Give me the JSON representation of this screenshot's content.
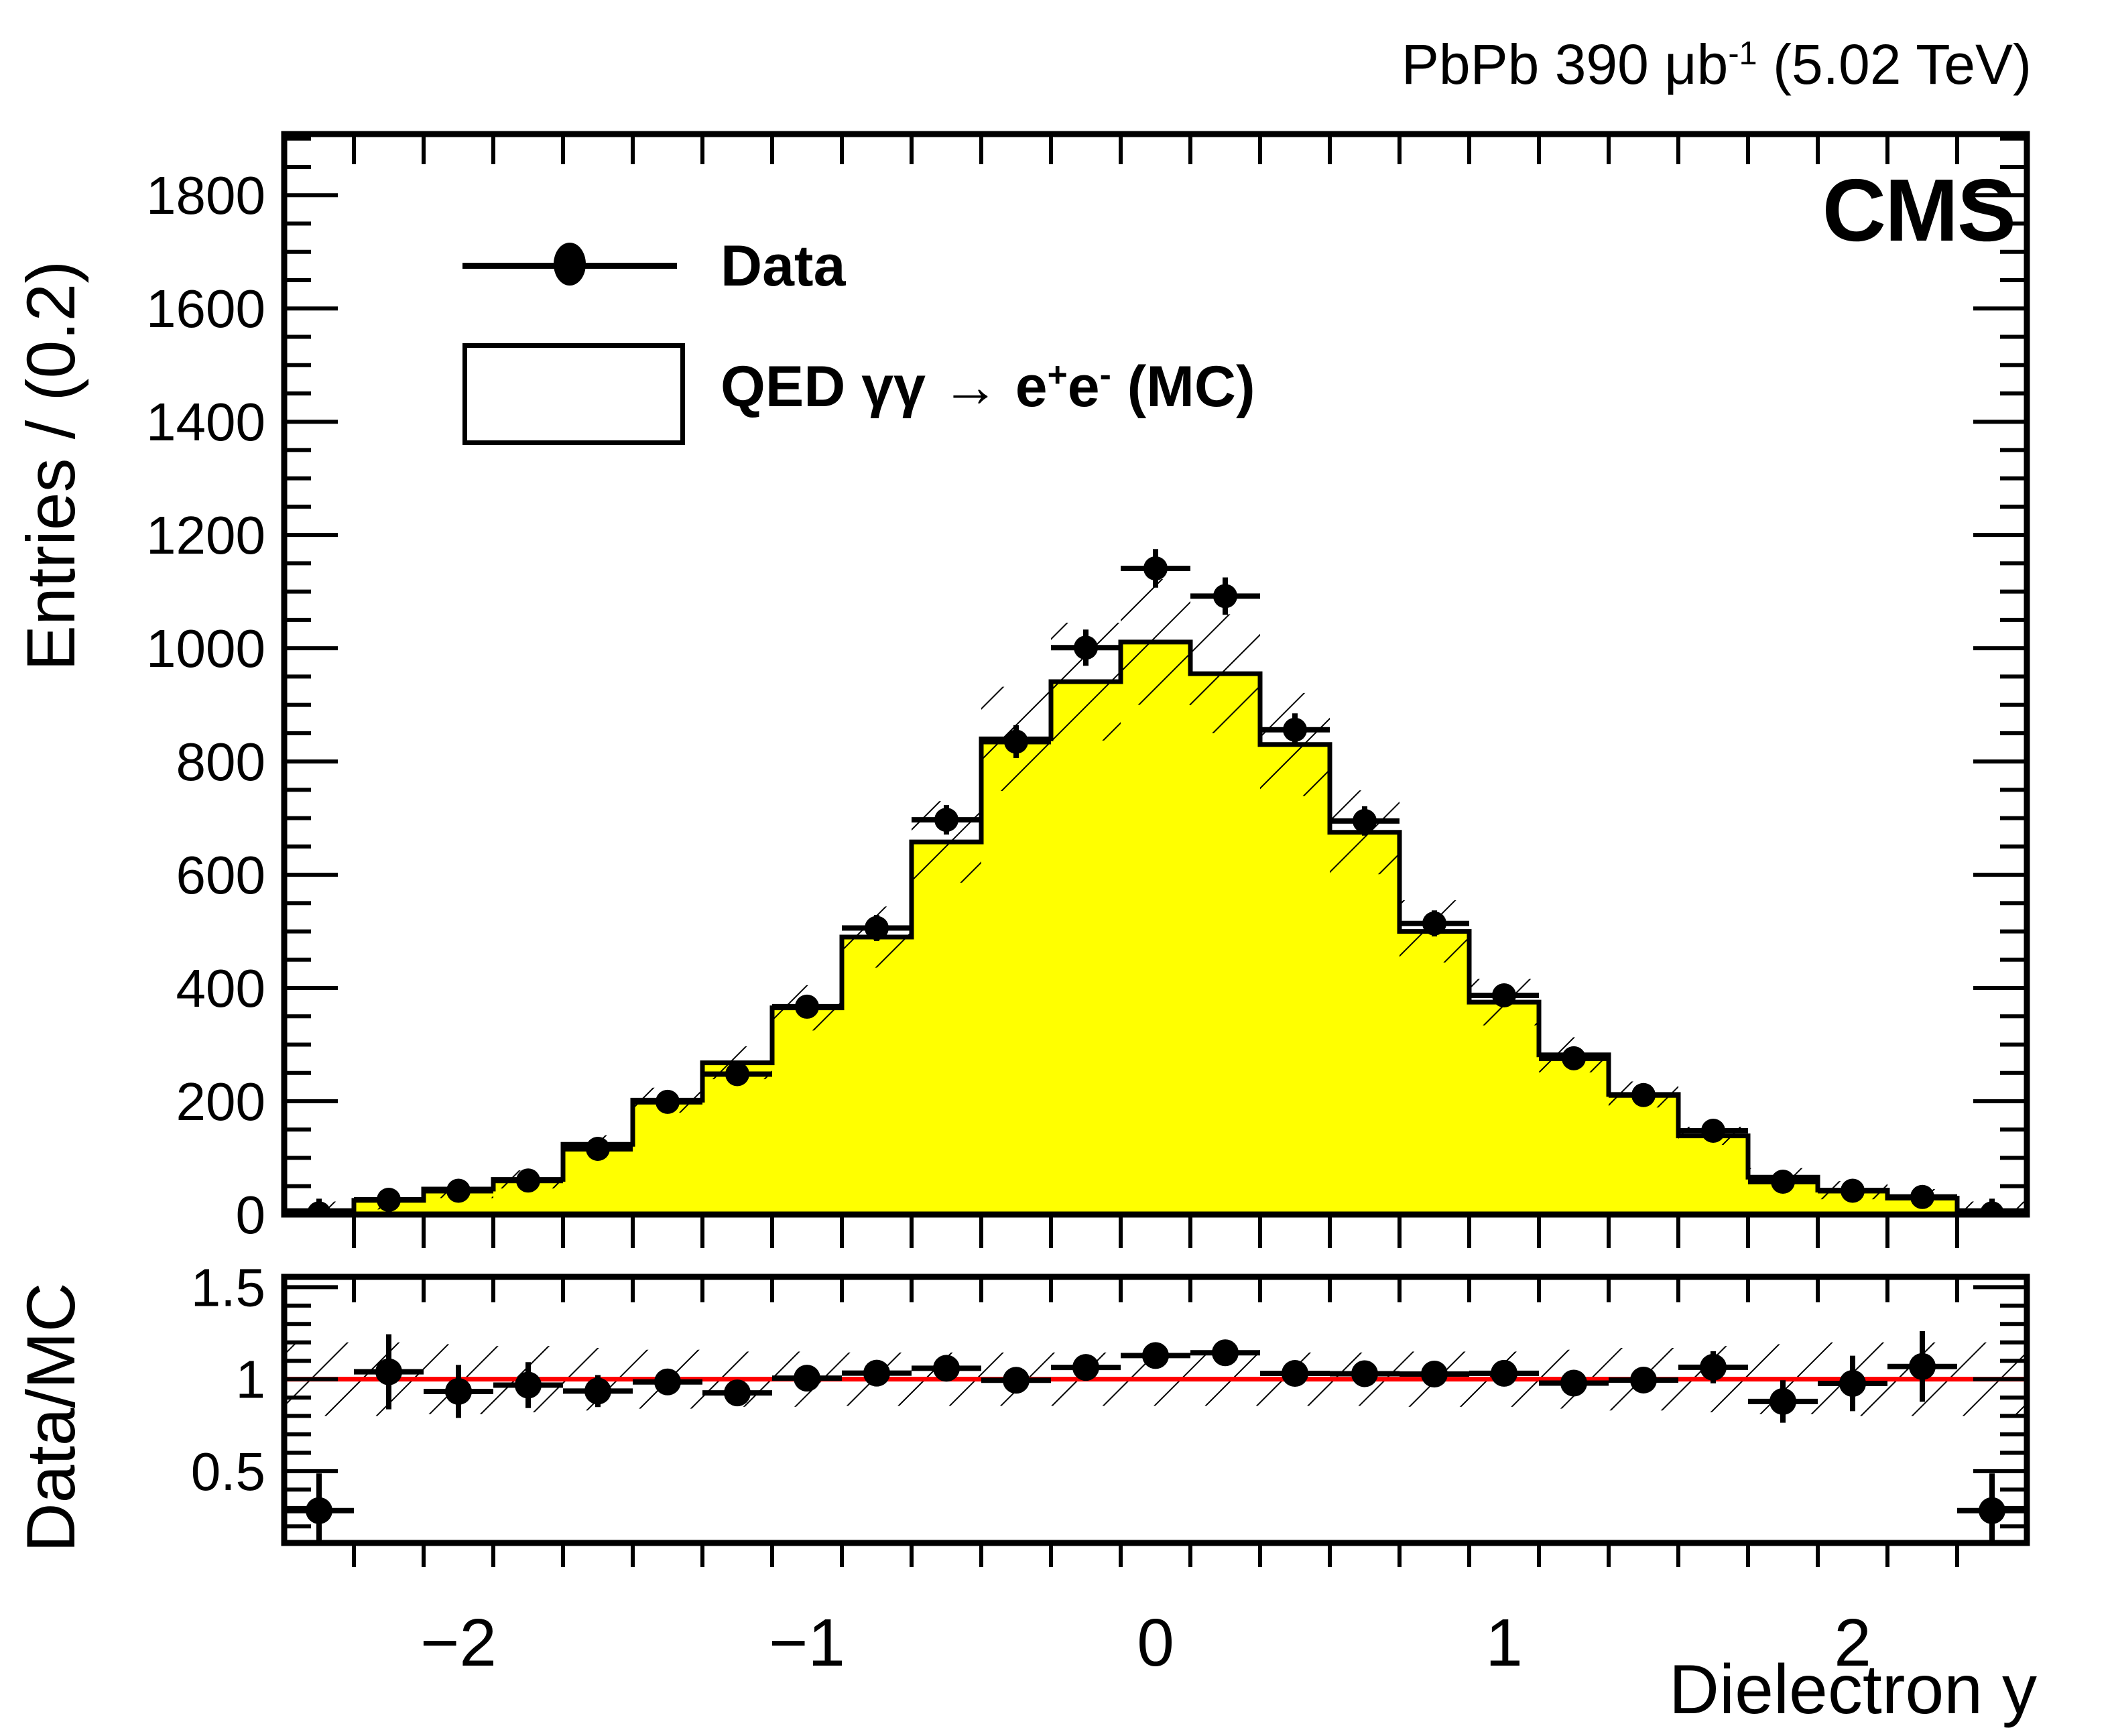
{
  "header": {
    "lumi_prefix": "PbPb 390 ",
    "lumi_unit": "μb",
    "lumi_sup": "-1",
    "lumi_suffix": " (5.02 TeV)",
    "cms": "CMS"
  },
  "legend": {
    "data_label": "Data",
    "mc_label_parts": {
      "qed": "QED ",
      "gammas": "γγ",
      "arrow": " → ",
      "e1": "e",
      "sup_plus": "+",
      "e2": "e",
      "sup_minus": "-",
      "suffix": " (MC)"
    }
  },
  "chart_data": {
    "type": "bar",
    "subtype": "histogram-with-ratio-panel",
    "title": "PbPb 390 μb⁻¹ (5.02 TeV)",
    "xlabel": "Dielectron y",
    "ylabel_main": "Entries / (0.2)",
    "ylabel_ratio": "Data/MC",
    "legend_entries": [
      "Data",
      "QED γγ → e+e- (MC)"
    ],
    "legend_position": "top-left",
    "grid": false,
    "bin_width": 0.2,
    "xlim": [
      -2.5,
      2.5
    ],
    "ylim_main": [
      0,
      1908
    ],
    "ylim_ratio": [
      0.11,
      1.556
    ],
    "categories": [
      -2.4,
      -2.2,
      -2.0,
      -1.8,
      -1.6,
      -1.4,
      -1.2,
      -1.0,
      -0.8,
      -0.6,
      -0.4,
      -0.2,
      0.0,
      0.2,
      0.4,
      0.6,
      0.8,
      1.0,
      1.2,
      1.4,
      1.6,
      1.8,
      2.0,
      2.2,
      2.4
    ],
    "series": [
      {
        "name": "Data",
        "style": "points",
        "values": [
          2,
          26,
          42,
          60,
          116,
          199,
          248,
          367,
          506,
          697,
          835,
          1001,
          1141,
          1092,
          856,
          695,
          514,
          387,
          276,
          211,
          148,
          58,
          42,
          31,
          2
        ],
        "errors": [
          26,
          8,
          7,
          8,
          11,
          14,
          16,
          19,
          23,
          26,
          29,
          32,
          34,
          33,
          29,
          26,
          23,
          20,
          17,
          15,
          12,
          8,
          7,
          6,
          26
        ]
      },
      {
        "name": "QED gamma-gamma to e+e- (MC)",
        "style": "filled-histogram",
        "values": [
          7,
          25,
          45,
          62,
          124,
          202,
          268,
          365,
          490,
          658,
          840,
          941,
          1011,
          955,
          830,
          675,
          500,
          375,
          282,
          212,
          139,
          66,
          43,
          29,
          7
        ],
        "band_halfwidths": [
          16,
          16,
          16,
          16,
          16,
          22,
          29,
          40,
          54,
          72,
          92,
          104,
          111,
          105,
          91,
          74,
          55,
          41,
          31,
          23,
          16,
          16,
          16,
          16,
          16
        ]
      }
    ],
    "ratio": {
      "reference": 1.0,
      "band_halfwidths": [
        0.2,
        0.2,
        0.19,
        0.18,
        0.17,
        0.16,
        0.15,
        0.15,
        0.145,
        0.145,
        0.145,
        0.145,
        0.145,
        0.145,
        0.145,
        0.145,
        0.15,
        0.15,
        0.16,
        0.17,
        0.18,
        0.19,
        0.2,
        0.2,
        0.2
      ]
    },
    "axis_ticks": {
      "y_main_tick_values": [
        0,
        200,
        400,
        600,
        800,
        1000,
        1200,
        1400,
        1600,
        1800
      ],
      "y_main_tick_labels": [
        "0",
        "200",
        "400",
        "600",
        "800",
        "1000",
        "1200",
        "1400",
        "1600",
        "1800"
      ],
      "y_main_minor_step": 50,
      "x_tick_values": [
        -2,
        -1,
        0,
        1,
        2
      ],
      "x_tick_labels": [
        "−2",
        "−1",
        "0",
        "1",
        "2"
      ],
      "x_minor_step": 0.2,
      "ratio_tick_values": [
        0.5,
        1.0,
        1.5
      ],
      "ratio_tick_labels": [
        "0.5",
        "1",
        "1.5"
      ],
      "ratio_minor_step": 0.1
    },
    "colors": {
      "mc_fill": "#ffff00",
      "line": "#000000",
      "ratio_reference_line": "#ff0000",
      "background": "#ffffff"
    }
  }
}
